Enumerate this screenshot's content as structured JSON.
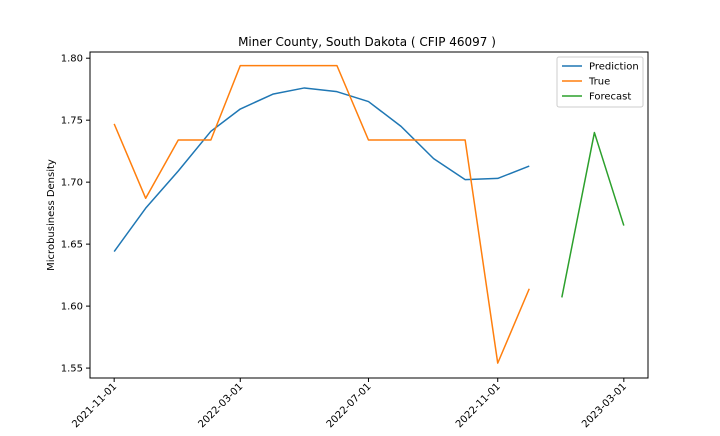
{
  "chart_data": {
    "type": "line",
    "title": "Miner County, South Dakota ( CFIP 46097 )",
    "xlabel": "",
    "ylabel": "Microbusiness Density",
    "ylim": [
      1.542,
      1.805
    ],
    "xlim": [
      "2021-10-09",
      "2023-03-24"
    ],
    "x_ticks": [
      "2021-11-01",
      "2022-03-01",
      "2022-07-01",
      "2022-11-01",
      "2023-03-01"
    ],
    "y_ticks": [
      1.55,
      1.6,
      1.65,
      1.7,
      1.75,
      1.8
    ],
    "y_tick_labels": [
      "1.55",
      "1.60",
      "1.65",
      "1.70",
      "1.75",
      "1.80"
    ],
    "legend_position": "top-right",
    "grid": false,
    "series": [
      {
        "name": "Prediction",
        "color": "#1f77b4",
        "x": [
          "2021-11-01",
          "2021-12-01",
          "2022-01-01",
          "2022-02-01",
          "2022-03-01",
          "2022-04-01",
          "2022-05-01",
          "2022-06-01",
          "2022-07-01",
          "2022-08-01",
          "2022-09-01",
          "2022-10-01",
          "2022-11-01",
          "2022-12-01"
        ],
        "values": [
          1.644,
          1.679,
          1.709,
          1.741,
          1.759,
          1.771,
          1.776,
          1.773,
          1.765,
          1.745,
          1.719,
          1.702,
          1.703,
          1.713
        ]
      },
      {
        "name": "True",
        "color": "#ff7f0e",
        "x": [
          "2021-11-01",
          "2021-12-01",
          "2022-01-01",
          "2022-02-01",
          "2022-03-01",
          "2022-04-01",
          "2022-05-01",
          "2022-06-01",
          "2022-07-01",
          "2022-08-01",
          "2022-09-01",
          "2022-10-01",
          "2022-11-01",
          "2022-12-01"
        ],
        "values": [
          1.747,
          1.687,
          1.734,
          1.734,
          1.794,
          1.794,
          1.794,
          1.794,
          1.734,
          1.734,
          1.734,
          1.734,
          1.554,
          1.614
        ]
      },
      {
        "name": "Forecast",
        "color": "#2ca02c",
        "x": [
          "2023-01-01",
          "2023-02-01",
          "2023-03-01"
        ],
        "values": [
          1.607,
          1.74,
          1.665
        ]
      }
    ]
  }
}
